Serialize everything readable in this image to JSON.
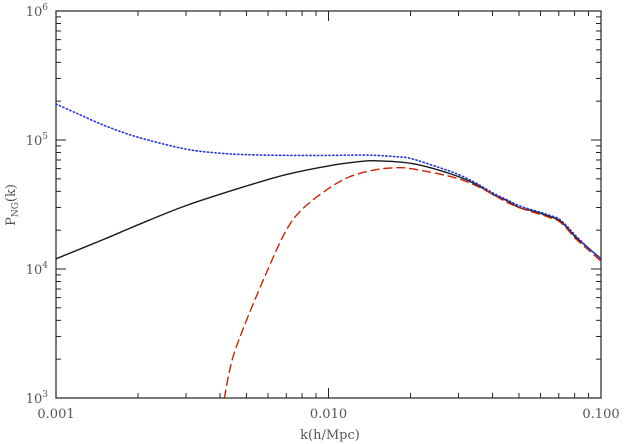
{
  "chart_data": {
    "type": "line",
    "xlabel": "k(h/Mpc)",
    "ylabel": "P",
    "ylabel_sub": "NG",
    "ylabel_suffix": "(k)",
    "xscale": "log",
    "yscale": "log",
    "xlim": [
      0.001,
      0.1
    ],
    "ylim": [
      1000,
      1000000
    ],
    "x_ticks": [
      {
        "value": 0.001,
        "label": "0.001"
      },
      {
        "value": 0.01,
        "label": "0.010"
      },
      {
        "value": 0.1,
        "label": "0.100"
      }
    ],
    "y_ticks": [
      {
        "value": 1000,
        "base": "10",
        "exp": "3"
      },
      {
        "value": 10000,
        "base": "10",
        "exp": "4"
      },
      {
        "value": 100000,
        "base": "10",
        "exp": "5"
      },
      {
        "value": 1000000,
        "base": "10",
        "exp": "6"
      }
    ],
    "grid": false,
    "series": [
      {
        "color": "#1a1a1a",
        "style": "solid",
        "points": [
          [
            0.001,
            12000
          ],
          [
            0.0015,
            17000
          ],
          [
            0.002,
            22000
          ],
          [
            0.003,
            31000
          ],
          [
            0.005,
            44000
          ],
          [
            0.007,
            54000
          ],
          [
            0.01,
            63000
          ],
          [
            0.013,
            68000
          ],
          [
            0.015,
            69000
          ],
          [
            0.02,
            66000
          ],
          [
            0.025,
            59000
          ],
          [
            0.03,
            52000
          ],
          [
            0.035,
            45000
          ],
          [
            0.04,
            38000
          ],
          [
            0.045,
            34000
          ],
          [
            0.05,
            30000
          ],
          [
            0.055,
            28500
          ],
          [
            0.06,
            27000
          ],
          [
            0.065,
            25500
          ],
          [
            0.07,
            24000
          ],
          [
            0.075,
            21000
          ],
          [
            0.08,
            18000
          ],
          [
            0.09,
            14500
          ],
          [
            0.1,
            12000
          ]
        ]
      },
      {
        "color": "#cc2200",
        "style": "dashed",
        "points": [
          [
            0.00415,
            1000
          ],
          [
            0.0043,
            1500
          ],
          [
            0.0045,
            2200
          ],
          [
            0.005,
            4000
          ],
          [
            0.006,
            10000
          ],
          [
            0.007,
            20000
          ],
          [
            0.008,
            29000
          ],
          [
            0.01,
            42000
          ],
          [
            0.012,
            52000
          ],
          [
            0.015,
            59000
          ],
          [
            0.018,
            61000
          ],
          [
            0.02,
            60000
          ],
          [
            0.025,
            55000
          ],
          [
            0.03,
            50000
          ],
          [
            0.035,
            44000
          ],
          [
            0.04,
            38000
          ],
          [
            0.045,
            33000
          ],
          [
            0.05,
            30000
          ],
          [
            0.055,
            28000
          ],
          [
            0.06,
            26500
          ],
          [
            0.065,
            25000
          ],
          [
            0.07,
            23500
          ],
          [
            0.075,
            20500
          ],
          [
            0.08,
            17500
          ],
          [
            0.09,
            14000
          ],
          [
            0.1,
            11500
          ]
        ]
      },
      {
        "color": "#2233dd",
        "style": "dotted",
        "points": [
          [
            0.001,
            190000
          ],
          [
            0.0012,
            160000
          ],
          [
            0.0015,
            130000
          ],
          [
            0.002,
            105000
          ],
          [
            0.003,
            85000
          ],
          [
            0.004,
            79000
          ],
          [
            0.005,
            77000
          ],
          [
            0.007,
            76000
          ],
          [
            0.01,
            76000
          ],
          [
            0.013,
            76500
          ],
          [
            0.015,
            76000
          ],
          [
            0.018,
            74000
          ],
          [
            0.02,
            72000
          ],
          [
            0.025,
            62000
          ],
          [
            0.03,
            54000
          ],
          [
            0.035,
            46000
          ],
          [
            0.04,
            39000
          ],
          [
            0.045,
            34500
          ],
          [
            0.05,
            31000
          ],
          [
            0.055,
            29000
          ],
          [
            0.06,
            27500
          ],
          [
            0.065,
            26000
          ],
          [
            0.07,
            24500
          ],
          [
            0.075,
            21500
          ],
          [
            0.08,
            18500
          ],
          [
            0.09,
            14500
          ],
          [
            0.1,
            12000
          ]
        ]
      }
    ]
  }
}
